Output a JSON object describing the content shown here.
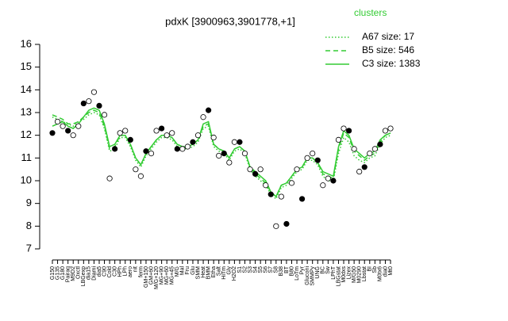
{
  "chart_data": {
    "type": "line",
    "title": "pdxK [3900963,3901778,+1]",
    "legend_title": "clusters",
    "legend": "top-right",
    "categories": [
      "G150",
      "G135",
      "G180",
      "Pairaq",
      "M9D2",
      "Oxctl",
      "LBGexp",
      "dia15",
      "Diami",
      "dia5",
      "C90",
      "Cold",
      "C30",
      "HPh",
      "LPh",
      "aero",
      "nit",
      "ferm",
      "GM+150",
      "GM+60",
      "M/G+120",
      "MG+90",
      "MG+60",
      "MG+45",
      "M/G",
      "Mal",
      "Fru",
      "Glu",
      "SMM",
      "Heat",
      "BMM",
      "Etha",
      "Salt",
      "HiTm",
      "Gly",
      "H2O2",
      "S1",
      "S2",
      "S3",
      "S4",
      "S5",
      "S6",
      "S7",
      "S8",
      "B38",
      "BT",
      "B80",
      "LoTm",
      "Pyr",
      "Gluconi",
      "SMMPy",
      "UNG",
      "BC",
      "Sw",
      "LPhT",
      "LBGstat",
      "M0dxs",
      "Lizex",
      "M/G50",
      "M0290",
      "Lbstat",
      "BI",
      "Sb",
      "M0tx6",
      "dia0",
      "Mt0"
    ],
    "series": [
      {
        "name": "A67 size: 17",
        "color": "#33cc33",
        "style": "dotted",
        "values": [
          12.8,
          12.7,
          12.6,
          12.5,
          12.4,
          12.6,
          12.7,
          12.9,
          13.0,
          12.9,
          12.3,
          11.3,
          11.4,
          11.9,
          11.9,
          11.5,
          10.9,
          10.6,
          11.1,
          11.4,
          11.7,
          11.9,
          11.9,
          11.8,
          11.5,
          11.4,
          11.4,
          11.5,
          11.7,
          12.3,
          12.4,
          11.5,
          11.3,
          11.2,
          10.9,
          11.3,
          11.4,
          11.2,
          10.5,
          10.2,
          10.0,
          9.8,
          9.4,
          9.2,
          9.7,
          9.8,
          10.1,
          10.4,
          10.5,
          10.9,
          10.9,
          10.7,
          10.2,
          10.0,
          10.0,
          11.2,
          11.9,
          11.7,
          11.1,
          10.9,
          10.8,
          11.0,
          11.1,
          11.6,
          11.9,
          12.0
        ]
      },
      {
        "name": "B5 size: 546",
        "color": "#33cc33",
        "style": "dashed",
        "values": [
          12.9,
          12.8,
          12.7,
          12.5,
          12.5,
          12.6,
          12.8,
          13.0,
          13.1,
          13.0,
          12.4,
          11.4,
          11.5,
          12.0,
          12.0,
          11.6,
          11.0,
          10.7,
          11.2,
          11.5,
          11.8,
          12.0,
          12.0,
          11.9,
          11.6,
          11.5,
          11.5,
          11.6,
          11.8,
          12.4,
          12.5,
          11.6,
          11.4,
          11.3,
          11.0,
          11.4,
          11.5,
          11.3,
          10.6,
          10.3,
          10.1,
          9.9,
          9.5,
          9.3,
          9.8,
          9.9,
          10.2,
          10.5,
          10.6,
          11.0,
          11.0,
          10.8,
          10.3,
          10.2,
          10.1,
          11.4,
          12.1,
          11.9,
          11.3,
          11.1,
          10.9,
          11.1,
          11.2,
          11.7,
          12.0,
          12.1
        ]
      },
      {
        "name": "C3 size: 1383",
        "color": "#33cc33",
        "style": "solid",
        "values": [
          12.4,
          12.5,
          12.6,
          12.4,
          12.3,
          12.5,
          12.8,
          13.1,
          13.2,
          13.1,
          12.5,
          11.5,
          11.6,
          12.0,
          12.0,
          11.6,
          11.0,
          10.7,
          11.2,
          11.5,
          11.8,
          12.0,
          12.0,
          11.9,
          11.6,
          11.5,
          11.5,
          11.6,
          11.8,
          12.5,
          12.6,
          11.6,
          11.4,
          11.3,
          11.0,
          11.4,
          11.5,
          11.3,
          10.6,
          10.4,
          10.2,
          10.0,
          9.5,
          9.3,
          9.8,
          9.9,
          10.2,
          10.5,
          10.6,
          11.0,
          11.0,
          10.8,
          10.4,
          10.3,
          10.2,
          11.5,
          12.2,
          12.0,
          11.4,
          11.2,
          11.0,
          11.2,
          11.3,
          11.8,
          12.0,
          12.1
        ]
      }
    ],
    "points": [
      12.1,
      12.6,
      12.4,
      12.2,
      12.0,
      12.4,
      13.4,
      13.5,
      13.9,
      13.3,
      12.9,
      10.1,
      11.4,
      12.1,
      12.2,
      11.8,
      10.5,
      10.2,
      11.3,
      11.2,
      12.2,
      12.3,
      12.0,
      12.1,
      11.4,
      11.4,
      11.5,
      11.7,
      12.0,
      12.8,
      13.1,
      11.9,
      11.1,
      11.2,
      10.8,
      11.7,
      11.7,
      11.2,
      10.5,
      10.3,
      10.5,
      9.8,
      9.4,
      8.0,
      9.3,
      8.1,
      9.9,
      10.5,
      9.2,
      11.0,
      11.2,
      10.9,
      9.8,
      10.1,
      10.0,
      11.8,
      12.3,
      12.2,
      11.4,
      10.4,
      10.6,
      11.2,
      11.4,
      11.6,
      12.2,
      12.3
    ],
    "ylim": [
      7,
      16
    ],
    "yticks": [
      7,
      8,
      9,
      10,
      11,
      12,
      13,
      14,
      15,
      16
    ]
  }
}
